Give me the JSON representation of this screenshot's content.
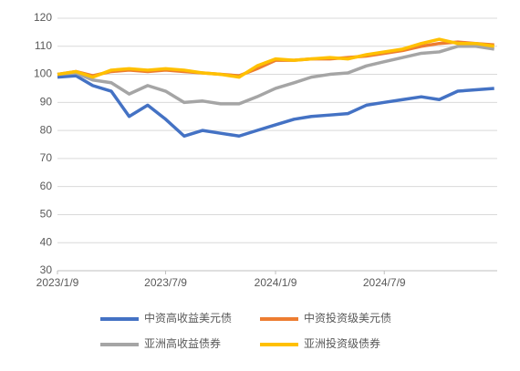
{
  "chart_data": {
    "type": "line",
    "x": [
      "2023/1/9",
      "2023/2/9",
      "2023/3/9",
      "2023/4/9",
      "2023/5/9",
      "2023/6/9",
      "2023/7/9",
      "2023/8/9",
      "2023/9/9",
      "2023/10/9",
      "2023/11/9",
      "2023/12/9",
      "2024/1/9",
      "2024/2/9",
      "2024/3/9",
      "2024/4/9",
      "2024/5/9",
      "2024/6/9",
      "2024/7/9",
      "2024/8/9",
      "2024/9/9",
      "2024/10/9",
      "2024/11/9",
      "2024/12/9",
      "2025/1/9"
    ],
    "series": [
      {
        "name": "中资高收益美元债",
        "color": "#4472c4",
        "values": [
          99,
          99.5,
          96,
          94,
          85,
          89,
          84,
          78,
          80,
          79,
          78,
          80,
          82,
          84,
          85,
          85.5,
          86,
          89,
          90,
          91,
          92,
          91,
          94,
          94.5,
          95
        ]
      },
      {
        "name": "中资投资级美元债",
        "color": "#ed7d31",
        "values": [
          100,
          101,
          99.5,
          101,
          101.5,
          101,
          101.5,
          101,
          100.5,
          100,
          99.5,
          102,
          105,
          105,
          105.5,
          105.5,
          106,
          106.5,
          107.5,
          108.5,
          110,
          111,
          111.5,
          111,
          110.5
        ]
      },
      {
        "name": "亚洲高收益债券",
        "color": "#a5a5a5",
        "values": [
          100,
          100.5,
          98,
          97,
          93,
          96,
          94,
          90,
          90.5,
          89.5,
          89.5,
          92,
          95,
          97,
          99,
          100,
          100.5,
          103,
          104.5,
          106,
          107.5,
          108,
          110,
          110,
          109
        ]
      },
      {
        "name": "亚洲投资级债券",
        "color": "#ffc000",
        "values": [
          100,
          101,
          99,
          101.5,
          102,
          101.5,
          102,
          101.5,
          100.5,
          100,
          99,
          103,
          105.5,
          105,
          105.5,
          106,
          105.5,
          107,
          108,
          109,
          111,
          112.5,
          111,
          111,
          110
        ]
      }
    ],
    "xlim": [
      "2023/1/9",
      "2025/1/14"
    ],
    "xticks": [
      "2023/1/9",
      "2023/7/9",
      "2024/1/9",
      "2024/7/9"
    ],
    "ylim": [
      30,
      120
    ],
    "yticks": [
      30,
      40,
      50,
      60,
      70,
      80,
      90,
      100,
      110,
      120
    ],
    "grid": true
  }
}
